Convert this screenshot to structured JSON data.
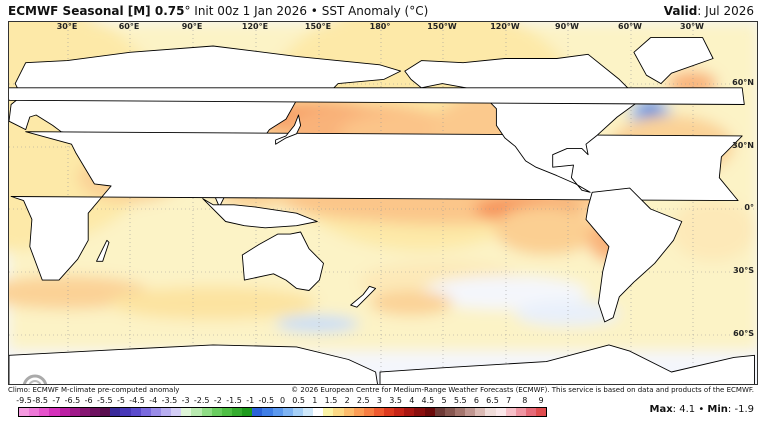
{
  "header": {
    "model": "ECMWF Seasonal [M] 0.75",
    "degree": "°",
    "init": "Init 00z 1 Jan 2026",
    "separator": "•",
    "variable": "SST Anomaly (°C)",
    "valid_label": "Valid",
    "valid_value": ": Jul 2026"
  },
  "map": {
    "longitude_labels": [
      "30°E",
      "60°E",
      "90°E",
      "120°E",
      "150°E",
      "180°",
      "150°W",
      "120°W",
      "90°W",
      "60°W",
      "30°W"
    ],
    "latitude_labels": [
      "60°N",
      "30°N",
      "0°",
      "30°S",
      "60°S"
    ],
    "logo_text": "WeatherBELL"
  },
  "footer": {
    "climo": "Climo: ECMWF M-climate pre-computed anomaly",
    "copyright": "© 2026 European Centre for Medium-Range Weather Forecasts (ECMWF). This service is based on data and products of the ECMWF."
  },
  "colorbar": {
    "labels": [
      "-9.5",
      "-8.5",
      "-7",
      "-6.5",
      "-6",
      "-5.5",
      "-5",
      "-4.5",
      "-4",
      "-3.5",
      "-3",
      "-2.5",
      "-2",
      "-1.5",
      "-1",
      "-0.5",
      "0",
      "0.5",
      "1",
      "1.5",
      "2",
      "2.5",
      "3",
      "3.5",
      "4",
      "4.5",
      "5",
      "5.5",
      "6",
      "6.5",
      "7",
      "8",
      "9"
    ],
    "colors": [
      "#f59ae0",
      "#ee78d8",
      "#e653cc",
      "#d531bb",
      "#bb1fa3",
      "#a01a8a",
      "#861672",
      "#6e1260",
      "#5a0e4f",
      "#3a2a9a",
      "#4838b8",
      "#5b4bcc",
      "#7a6ade",
      "#9a8ce8",
      "#b8aef0",
      "#d4cef6",
      "#dff5d8",
      "#b9eab0",
      "#8fdc85",
      "#6acd60",
      "#4fbf45",
      "#35ac2f",
      "#1d9a1c",
      "#2a62d8",
      "#3f7ee6",
      "#5c99ee",
      "#7fb4f3",
      "#a6d0f7",
      "#cfe8fa",
      "#ffffff",
      "#fbf3a6",
      "#fcd985",
      "#fcbc6c",
      "#fb9d55",
      "#f77e42",
      "#ef5a2f",
      "#dd3a1f",
      "#c72518",
      "#a91712",
      "#8a0f0e",
      "#6b0a0a",
      "#6e3a36",
      "#875750",
      "#a4756d",
      "#c09690",
      "#dbbab4",
      "#f0dcd9",
      "#fbe8ea",
      "#f7c0c8",
      "#ef95a2",
      "#e66a78",
      "#e04c4e"
    ]
  },
  "stats": {
    "max_label": "Max",
    "max_value": "4.1",
    "separator": "•",
    "min_label": "Min",
    "min_value": "-1.9"
  }
}
